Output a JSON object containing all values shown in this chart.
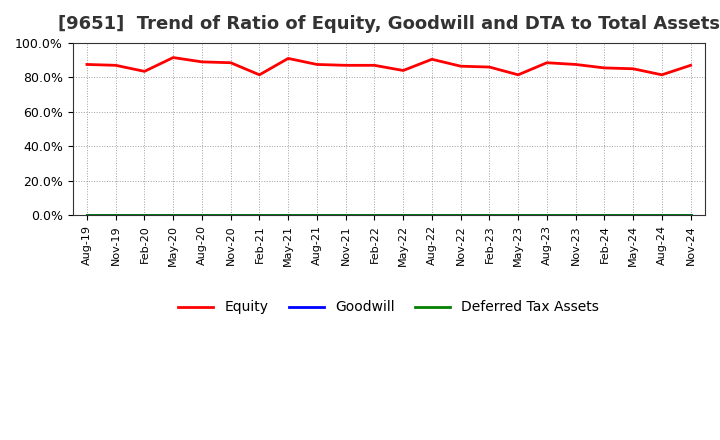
{
  "title": "[9651]  Trend of Ratio of Equity, Goodwill and DTA to Total Assets",
  "x_labels": [
    "Aug-19",
    "Nov-19",
    "Feb-20",
    "May-20",
    "Aug-20",
    "Nov-20",
    "Feb-21",
    "May-21",
    "Aug-21",
    "Nov-21",
    "Feb-22",
    "May-22",
    "Aug-22",
    "Nov-22",
    "Feb-23",
    "May-23",
    "Aug-23",
    "Nov-23",
    "Feb-24",
    "May-24",
    "Aug-24",
    "Nov-24"
  ],
  "equity": [
    87.5,
    87.0,
    83.5,
    91.5,
    89.0,
    88.5,
    81.5,
    91.0,
    87.5,
    87.0,
    87.0,
    84.0,
    90.5,
    86.5,
    86.0,
    81.5,
    88.5,
    87.5,
    85.5,
    85.0,
    81.5,
    87.0
  ],
  "goodwill": [
    0.0,
    0.0,
    0.0,
    0.0,
    0.0,
    0.0,
    0.0,
    0.0,
    0.0,
    0.0,
    0.0,
    0.0,
    0.0,
    0.0,
    0.0,
    0.0,
    0.0,
    0.0,
    0.0,
    0.0,
    0.0,
    0.0
  ],
  "dta": [
    0.0,
    0.0,
    0.0,
    0.0,
    0.0,
    0.0,
    0.0,
    0.0,
    0.0,
    0.0,
    0.0,
    0.0,
    0.0,
    0.0,
    0.0,
    0.0,
    0.0,
    0.0,
    0.0,
    0.0,
    0.0,
    0.0
  ],
  "equity_color": "#FF0000",
  "goodwill_color": "#0000FF",
  "dta_color": "#008000",
  "ylim": [
    0,
    100
  ],
  "yticks": [
    0,
    20,
    40,
    60,
    80,
    100
  ],
  "ytick_labels": [
    "0.0%",
    "20.0%",
    "40.0%",
    "60.0%",
    "80.0%",
    "100.0%"
  ],
  "background_color": "#FFFFFF",
  "plot_bg_color": "#FFFFFF",
  "grid_color": "#888888",
  "title_fontsize": 13,
  "legend_entries": [
    "Equity",
    "Goodwill",
    "Deferred Tax Assets"
  ],
  "line_width": 2.0
}
